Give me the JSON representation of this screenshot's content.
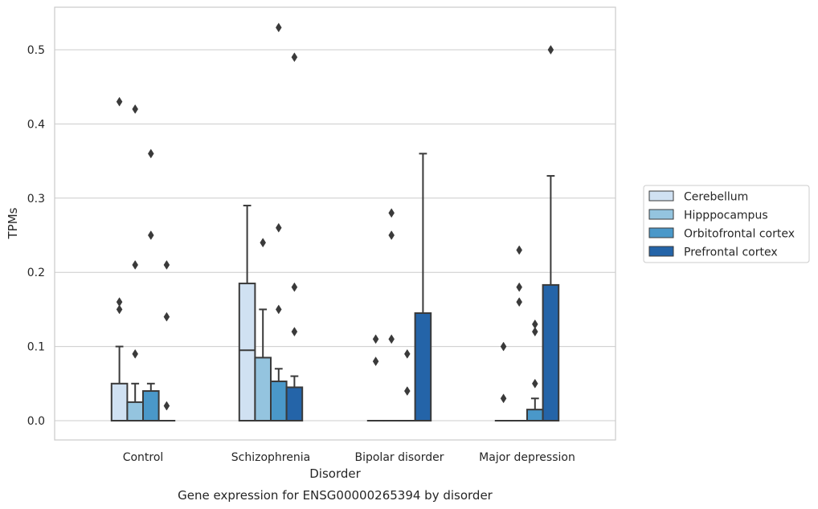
{
  "chart_data": {
    "type": "boxplot",
    "caption": "Gene expression for ENSG00000265394 by disorder",
    "xlabel": "Disorder",
    "ylabel": "TPMs",
    "ylim": [
      -0.025,
      0.558
    ],
    "yticks": [
      0.0,
      0.1,
      0.2,
      0.3,
      0.4,
      0.5
    ],
    "ytick_labels": [
      "0.0",
      "0.1",
      "0.2",
      "0.3",
      "0.4",
      "0.5"
    ],
    "grid": "horizontal",
    "legend_position": "right, outside plot",
    "categories": [
      "Control",
      "Schizophrenia",
      "Bipolar disorder",
      "Major depression"
    ],
    "series": [
      {
        "name": "Cerebellum",
        "color": "#d0e1f2",
        "boxes": [
          {
            "q1": 0.0,
            "median": 0.0,
            "q3": 0.05,
            "whisker_low": 0.0,
            "whisker_high": 0.1,
            "outliers": [
              0.43,
              0.16,
              0.15
            ]
          },
          {
            "q1": 0.0,
            "median": 0.095,
            "q3": 0.185,
            "whisker_low": 0.0,
            "whisker_high": 0.29,
            "outliers": []
          },
          {
            "q1": 0.0,
            "median": 0.0,
            "q3": 0.0,
            "whisker_low": 0.0,
            "whisker_high": 0.0,
            "outliers": [
              0.11,
              0.08
            ]
          },
          {
            "q1": 0.0,
            "median": 0.0,
            "q3": 0.0,
            "whisker_low": 0.0,
            "whisker_high": 0.0,
            "outliers": [
              0.1,
              0.03
            ]
          }
        ]
      },
      {
        "name": "Hipppocampus",
        "color": "#94c4df",
        "boxes": [
          {
            "q1": 0.0,
            "median": 0.0,
            "q3": 0.025,
            "whisker_low": 0.0,
            "whisker_high": 0.05,
            "outliers": [
              0.42,
              0.21,
              0.09
            ]
          },
          {
            "q1": 0.0,
            "median": 0.0,
            "q3": 0.085,
            "whisker_low": 0.0,
            "whisker_high": 0.15,
            "outliers": [
              0.24
            ]
          },
          {
            "q1": 0.0,
            "median": 0.0,
            "q3": 0.0,
            "whisker_low": 0.0,
            "whisker_high": 0.0,
            "outliers": [
              0.28,
              0.25,
              0.11
            ]
          },
          {
            "q1": 0.0,
            "median": 0.0,
            "q3": 0.0,
            "whisker_low": 0.0,
            "whisker_high": 0.0,
            "outliers": [
              0.23,
              0.18,
              0.16
            ]
          }
        ]
      },
      {
        "name": "Orbitofrontal cortex",
        "color": "#4a98c9",
        "boxes": [
          {
            "q1": 0.0,
            "median": 0.0,
            "q3": 0.04,
            "whisker_low": 0.0,
            "whisker_high": 0.05,
            "outliers": [
              0.36,
              0.25
            ]
          },
          {
            "q1": 0.0,
            "median": 0.0,
            "q3": 0.053,
            "whisker_low": 0.0,
            "whisker_high": 0.07,
            "outliers": [
              0.53,
              0.26,
              0.15
            ]
          },
          {
            "q1": 0.0,
            "median": 0.0,
            "q3": 0.0,
            "whisker_low": 0.0,
            "whisker_high": 0.0,
            "outliers": [
              0.09,
              0.04
            ]
          },
          {
            "q1": 0.0,
            "median": 0.0,
            "q3": 0.015,
            "whisker_low": 0.0,
            "whisker_high": 0.03,
            "outliers": [
              0.13,
              0.12,
              0.05
            ]
          }
        ]
      },
      {
        "name": "Prefrontal cortex",
        "color": "#2464a8",
        "boxes": [
          {
            "q1": 0.0,
            "median": 0.0,
            "q3": 0.0,
            "whisker_low": 0.0,
            "whisker_high": 0.0,
            "outliers": [
              0.21,
              0.14,
              0.02
            ]
          },
          {
            "q1": 0.0,
            "median": 0.0,
            "q3": 0.045,
            "whisker_low": 0.0,
            "whisker_high": 0.06,
            "outliers": [
              0.49,
              0.18,
              0.12
            ]
          },
          {
            "q1": 0.0,
            "median": 0.0,
            "q3": 0.145,
            "whisker_low": 0.0,
            "whisker_high": 0.36,
            "outliers": []
          },
          {
            "q1": 0.0,
            "median": 0.0,
            "q3": 0.183,
            "whisker_low": 0.0,
            "whisker_high": 0.33,
            "outliers": [
              0.5
            ]
          }
        ]
      }
    ]
  },
  "colors": {
    "edge": "#3a3a3a",
    "grid": "#cccccc",
    "frame": "#cccccc",
    "text": "#262626"
  }
}
